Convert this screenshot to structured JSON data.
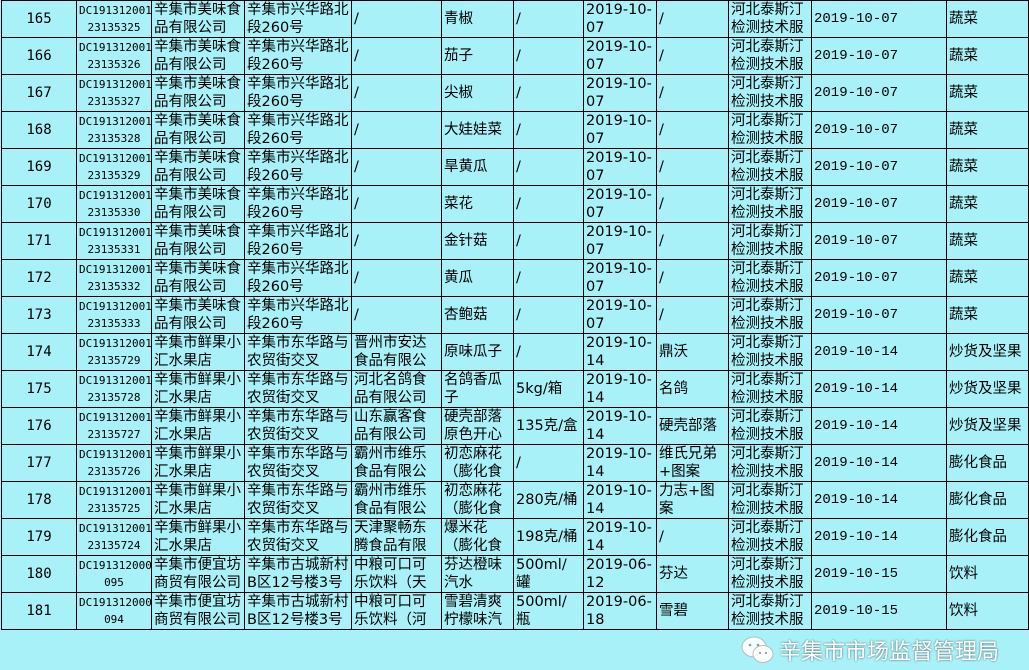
{
  "columns_visible": [
    "no",
    "sample_id",
    "company",
    "address",
    "producer",
    "product",
    "spec",
    "production_date",
    "brand",
    "testing_org",
    "test_date",
    "category"
  ],
  "rows": [
    {
      "no": "165",
      "sample_id": [
        "DC191312001",
        "23135325"
      ],
      "company": "辛集市美味食品有限公司",
      "address": "辛集市兴华路北段260号",
      "producer": "/",
      "product": "青椒",
      "spec": "/",
      "production_date": "2019-10-07",
      "brand": "/",
      "testing_org": "河北泰斯汀检测技术服",
      "test_date": "2019-10-07",
      "category": "蔬菜"
    },
    {
      "no": "166",
      "sample_id": [
        "DC191312001",
        "23135326"
      ],
      "company": "辛集市美味食品有限公司",
      "address": "辛集市兴华路北段260号",
      "producer": "/",
      "product": "茄子",
      "spec": "/",
      "production_date": "2019-10-07",
      "brand": "/",
      "testing_org": "河北泰斯汀检测技术服",
      "test_date": "2019-10-07",
      "category": "蔬菜"
    },
    {
      "no": "167",
      "sample_id": [
        "DC191312001",
        "23135327"
      ],
      "company": "辛集市美味食品有限公司",
      "address": "辛集市兴华路北段260号",
      "producer": "/",
      "product": "尖椒",
      "spec": "/",
      "production_date": "2019-10-07",
      "brand": "/",
      "testing_org": "河北泰斯汀检测技术服",
      "test_date": "2019-10-07",
      "category": "蔬菜"
    },
    {
      "no": "168",
      "sample_id": [
        "DC191312001",
        "23135328"
      ],
      "company": "辛集市美味食品有限公司",
      "address": "辛集市兴华路北段260号",
      "producer": "/",
      "product": "大娃娃菜",
      "spec": "/",
      "production_date": "2019-10-07",
      "brand": "/",
      "testing_org": "河北泰斯汀检测技术服",
      "test_date": "2019-10-07",
      "category": "蔬菜"
    },
    {
      "no": "169",
      "sample_id": [
        "DC191312001",
        "23135329"
      ],
      "company": "辛集市美味食品有限公司",
      "address": "辛集市兴华路北段260号",
      "producer": "/",
      "product": "旱黄瓜",
      "spec": "/",
      "production_date": "2019-10-07",
      "brand": "/",
      "testing_org": "河北泰斯汀检测技术服",
      "test_date": "2019-10-07",
      "category": "蔬菜"
    },
    {
      "no": "170",
      "sample_id": [
        "DC191312001",
        "23135330"
      ],
      "company": "辛集市美味食品有限公司",
      "address": "辛集市兴华路北段260号",
      "producer": "/",
      "product": "菜花",
      "spec": "/",
      "production_date": "2019-10-07",
      "brand": "/",
      "testing_org": "河北泰斯汀检测技术服",
      "test_date": "2019-10-07",
      "category": "蔬菜"
    },
    {
      "no": "171",
      "sample_id": [
        "DC191312001",
        "23135331"
      ],
      "company": "辛集市美味食品有限公司",
      "address": "辛集市兴华路北段260号",
      "producer": "/",
      "product": "金针菇",
      "spec": "/",
      "production_date": "2019-10-07",
      "brand": "/",
      "testing_org": "河北泰斯汀检测技术服",
      "test_date": "2019-10-07",
      "category": "蔬菜"
    },
    {
      "no": "172",
      "sample_id": [
        "DC191312001",
        "23135332"
      ],
      "company": "辛集市美味食品有限公司",
      "address": "辛集市兴华路北段260号",
      "producer": "/",
      "product": "黄瓜",
      "spec": "/",
      "production_date": "2019-10-07",
      "brand": "/",
      "testing_org": "河北泰斯汀检测技术服",
      "test_date": "2019-10-07",
      "category": "蔬菜"
    },
    {
      "no": "173",
      "sample_id": [
        "DC191312001",
        "23135333"
      ],
      "company": "辛集市美味食品有限公司",
      "address": "辛集市兴华路北段260号",
      "producer": "/",
      "product": "杏鲍菇",
      "spec": "/",
      "production_date": "2019-10-07",
      "brand": "/",
      "testing_org": "河北泰斯汀检测技术服",
      "test_date": "2019-10-07",
      "category": "蔬菜"
    },
    {
      "no": "174",
      "sample_id": [
        "DC191312001",
        "23135729"
      ],
      "company": "辛集市鲜果小汇水果店",
      "address": "辛集市东华路与农贸街交叉",
      "producer": "晋州市安达食品有限公",
      "product": "原味瓜子",
      "spec": "/",
      "production_date": "2019-10-14",
      "brand": "鼎沃",
      "testing_org": "河北泰斯汀检测技术服",
      "test_date": "2019-10-14",
      "category": "炒货及坚果"
    },
    {
      "no": "175",
      "sample_id": [
        "DC191312001",
        "23135728"
      ],
      "company": "辛集市鲜果小汇水果店",
      "address": "辛集市东华路与农贸街交叉",
      "producer": "河北名鸽食品有限公司",
      "product": "名鸽香瓜子",
      "spec": "5kg/箱",
      "production_date": "2019-10-14",
      "brand": "名鸽",
      "testing_org": "河北泰斯汀检测技术服",
      "test_date": "2019-10-14",
      "category": "炒货及坚果"
    },
    {
      "no": "176",
      "sample_id": [
        "DC191312001",
        "23135727"
      ],
      "company": "辛集市鲜果小汇水果店",
      "address": "辛集市东华路与农贸街交叉",
      "producer": "山东赢客食品有限公司",
      "product": "硬壳部落原色开心",
      "spec": "135克/盒",
      "production_date": "2019-10-14",
      "brand": "硬壳部落",
      "testing_org": "河北泰斯汀检测技术服",
      "test_date": "2019-10-14",
      "category": "炒货及坚果"
    },
    {
      "no": "177",
      "sample_id": [
        "DC191312001",
        "23135726"
      ],
      "company": "辛集市鲜果小汇水果店",
      "address": "辛集市东华路与农贸街交叉",
      "producer": "霸州市维乐食品有限公",
      "product": "初恋麻花（膨化食",
      "spec": "/",
      "production_date": "2019-10-14",
      "brand": "维氏兄弟+图案",
      "testing_org": "河北泰斯汀检测技术服",
      "test_date": "2019-10-14",
      "category": "膨化食品"
    },
    {
      "no": "178",
      "sample_id": [
        "DC191312001",
        "23135725"
      ],
      "company": "辛集市鲜果小汇水果店",
      "address": "辛集市东华路与农贸街交叉",
      "producer": "霸州市维乐食品有限公",
      "product": "初恋麻花（膨化食",
      "spec": "280克/桶",
      "production_date": "2019-10-14",
      "brand": "力志+图案",
      "testing_org": "河北泰斯汀检测技术服",
      "test_date": "2019-10-14",
      "category": "膨化食品"
    },
    {
      "no": "179",
      "sample_id": [
        "DC191312001",
        "23135724"
      ],
      "company": "辛集市鲜果小汇水果店",
      "address": "辛集市东华路与农贸街交叉",
      "producer": "天津聚畅东腾食品有限",
      "product": "爆米花（膨化食",
      "spec": "198克/桶",
      "production_date": "2019-10-14",
      "brand": "/",
      "testing_org": "河北泰斯汀检测技术服",
      "test_date": "2019-10-14",
      "category": "膨化食品"
    },
    {
      "no": "180",
      "sample_id": [
        "DC191312000",
        "095"
      ],
      "company": "辛集市便宜坊商贸有限公司",
      "address": "辛集市古城新村B区12号楼3号",
      "producer": "中粮可口可乐饮料（天",
      "product": "芬达橙味汽水",
      "spec": "500ml/罐",
      "production_date": "2019-06-12",
      "brand": "芬达",
      "testing_org": "河北泰斯汀检测技术服",
      "test_date": "2019-10-15",
      "category": "饮料"
    },
    {
      "no": "181",
      "sample_id": [
        "DC191312000",
        "094"
      ],
      "company": "辛集市便宜坊商贸有限公司",
      "address": "辛集市古城新村B区12号楼3号",
      "producer": "中粮可口可乐饮料（河",
      "product": "雪碧清爽柠檬味汽",
      "spec": "500ml/瓶",
      "production_date": "2019-06-18",
      "brand": "雪碧",
      "testing_org": "河北泰斯汀检测技术服",
      "test_date": "2019-10-15",
      "category": "饮料"
    }
  ],
  "watermark": {
    "text": "辛集市市场监督管理局",
    "icon": "wechat-icon"
  },
  "colors": {
    "cell_background": "#a9f1f8",
    "border": "#000000"
  }
}
